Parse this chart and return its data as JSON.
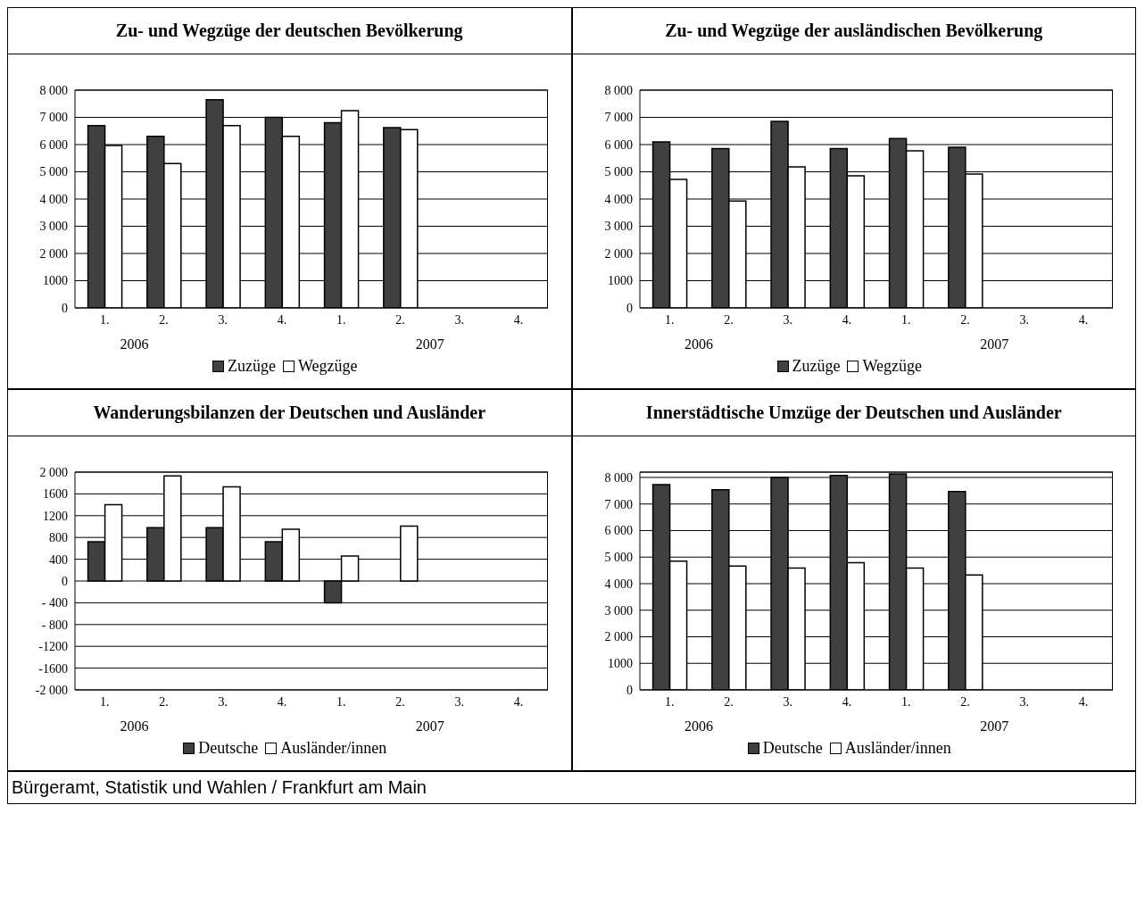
{
  "chart_data": [
    {
      "type": "bar",
      "title": "Zu- und Wegzüge der deutschen Bevölkerung",
      "categories": [
        "1.",
        "2.",
        "3.",
        "4.",
        "1.",
        "2.",
        "3.",
        "4."
      ],
      "series": [
        {
          "name": "Zuzüge",
          "color": "#404040",
          "values": [
            6700,
            6300,
            7650,
            7000,
            6800,
            6620,
            null,
            null
          ]
        },
        {
          "name": "Wegzüge",
          "color": "#ffffff",
          "values": [
            5970,
            5300,
            6700,
            6300,
            7250,
            6550,
            null,
            null
          ]
        }
      ],
      "ylim": [
        0,
        8000
      ],
      "yticks": [
        0,
        {
          "value": 1000,
          "label": "1000"
        },
        {
          "value": 2000,
          "label": "2 000"
        },
        {
          "value": 3000,
          "label": "3 000"
        },
        {
          "value": 4000,
          "label": "4 000"
        },
        {
          "value": 5000,
          "label": "5 000"
        },
        {
          "value": 6000,
          "label": "6 000"
        },
        {
          "value": 7000,
          "label": "7 000"
        },
        {
          "value": 8000,
          "label": "8 000"
        }
      ],
      "grid": "y",
      "legend": "bottom",
      "annotations": [
        "2006",
        "2007"
      ]
    },
    {
      "type": "bar",
      "title": "Zu- und Wegzüge der ausländischen Bevölkerung",
      "categories": [
        "1.",
        "2.",
        "3.",
        "4.",
        "1.",
        "2.",
        "3.",
        "4."
      ],
      "series": [
        {
          "name": "Zuzüge",
          "color": "#404040",
          "values": [
            6100,
            5850,
            6850,
            5850,
            6220,
            5900,
            null,
            null
          ]
        },
        {
          "name": "Wegzüge",
          "color": "#ffffff",
          "values": [
            4720,
            3930,
            5180,
            4850,
            5770,
            4920,
            null,
            null
          ]
        }
      ],
      "ylim": [
        0,
        8000
      ],
      "yticks": [
        0,
        {
          "value": 1000,
          "label": "1000"
        },
        {
          "value": 2000,
          "label": "2 000"
        },
        {
          "value": 3000,
          "label": "3 000"
        },
        {
          "value": 4000,
          "label": "4 000"
        },
        {
          "value": 5000,
          "label": "5 000"
        },
        {
          "value": 6000,
          "label": "6 000"
        },
        {
          "value": 7000,
          "label": "7 000"
        },
        {
          "value": 8000,
          "label": "8 000"
        }
      ],
      "grid": "y",
      "legend": "bottom",
      "annotations": [
        "2006",
        "2007"
      ]
    },
    {
      "type": "bar",
      "title": "Wanderungsbilanzen der Deutschen und Ausländer",
      "categories": [
        "1.",
        "2.",
        "3.",
        "4.",
        "1.",
        "2.",
        "3.",
        "4."
      ],
      "series": [
        {
          "name": "Deutsche",
          "color": "#404040",
          "values": [
            720,
            980,
            980,
            720,
            -400,
            null,
            null,
            null
          ]
        },
        {
          "name": "Ausländer/innen",
          "color": "#ffffff",
          "values": [
            1400,
            1930,
            1730,
            950,
            460,
            1010,
            null,
            null
          ]
        }
      ],
      "ylim": [
        -2000,
        2000
      ],
      "yticks": [
        {
          "value": -2000,
          "label": "-2 000"
        },
        -1600,
        -1200,
        {
          "value": -800,
          "label": "- 800"
        },
        {
          "value": -400,
          "label": "- 400"
        },
        0,
        400,
        800,
        1200,
        1600,
        {
          "value": 2000,
          "label": "2 000"
        }
      ],
      "grid": "y",
      "legend": "bottom",
      "annotations": [
        "2006",
        "2007"
      ]
    },
    {
      "type": "bar",
      "title": "Innerstädtische Umzüge der Deutschen und Ausländer",
      "categories": [
        "1.",
        "2.",
        "3.",
        "4.",
        "1.",
        "2.",
        "3.",
        "4."
      ],
      "series": [
        {
          "name": "Deutsche",
          "color": "#404040",
          "values": [
            7730,
            7540,
            8000,
            8070,
            8130,
            7470,
            null,
            null
          ]
        },
        {
          "name": "Ausländer/innen",
          "color": "#ffffff",
          "values": [
            4850,
            4660,
            4590,
            4790,
            4590,
            4330,
            null,
            null
          ]
        }
      ],
      "ylim": [
        0,
        8200
      ],
      "yticks": [
        0,
        {
          "value": 1000,
          "label": "1000"
        },
        {
          "value": 2000,
          "label": "2 000"
        },
        {
          "value": 3000,
          "label": "3 000"
        },
        {
          "value": 4000,
          "label": "4 000"
        },
        {
          "value": 5000,
          "label": "5 000"
        },
        {
          "value": 6000,
          "label": "6 000"
        },
        {
          "value": 7000,
          "label": "7 000"
        },
        {
          "value": 8000,
          "label": "8 000"
        }
      ],
      "grid": "y",
      "legend": "bottom",
      "annotations": [
        "2006",
        "2007"
      ]
    },
    {
      "type": "other",
      "annotations": [
        "Bürgeramt, Statistik und Wahlen / Frankfurt am Main"
      ]
    }
  ]
}
